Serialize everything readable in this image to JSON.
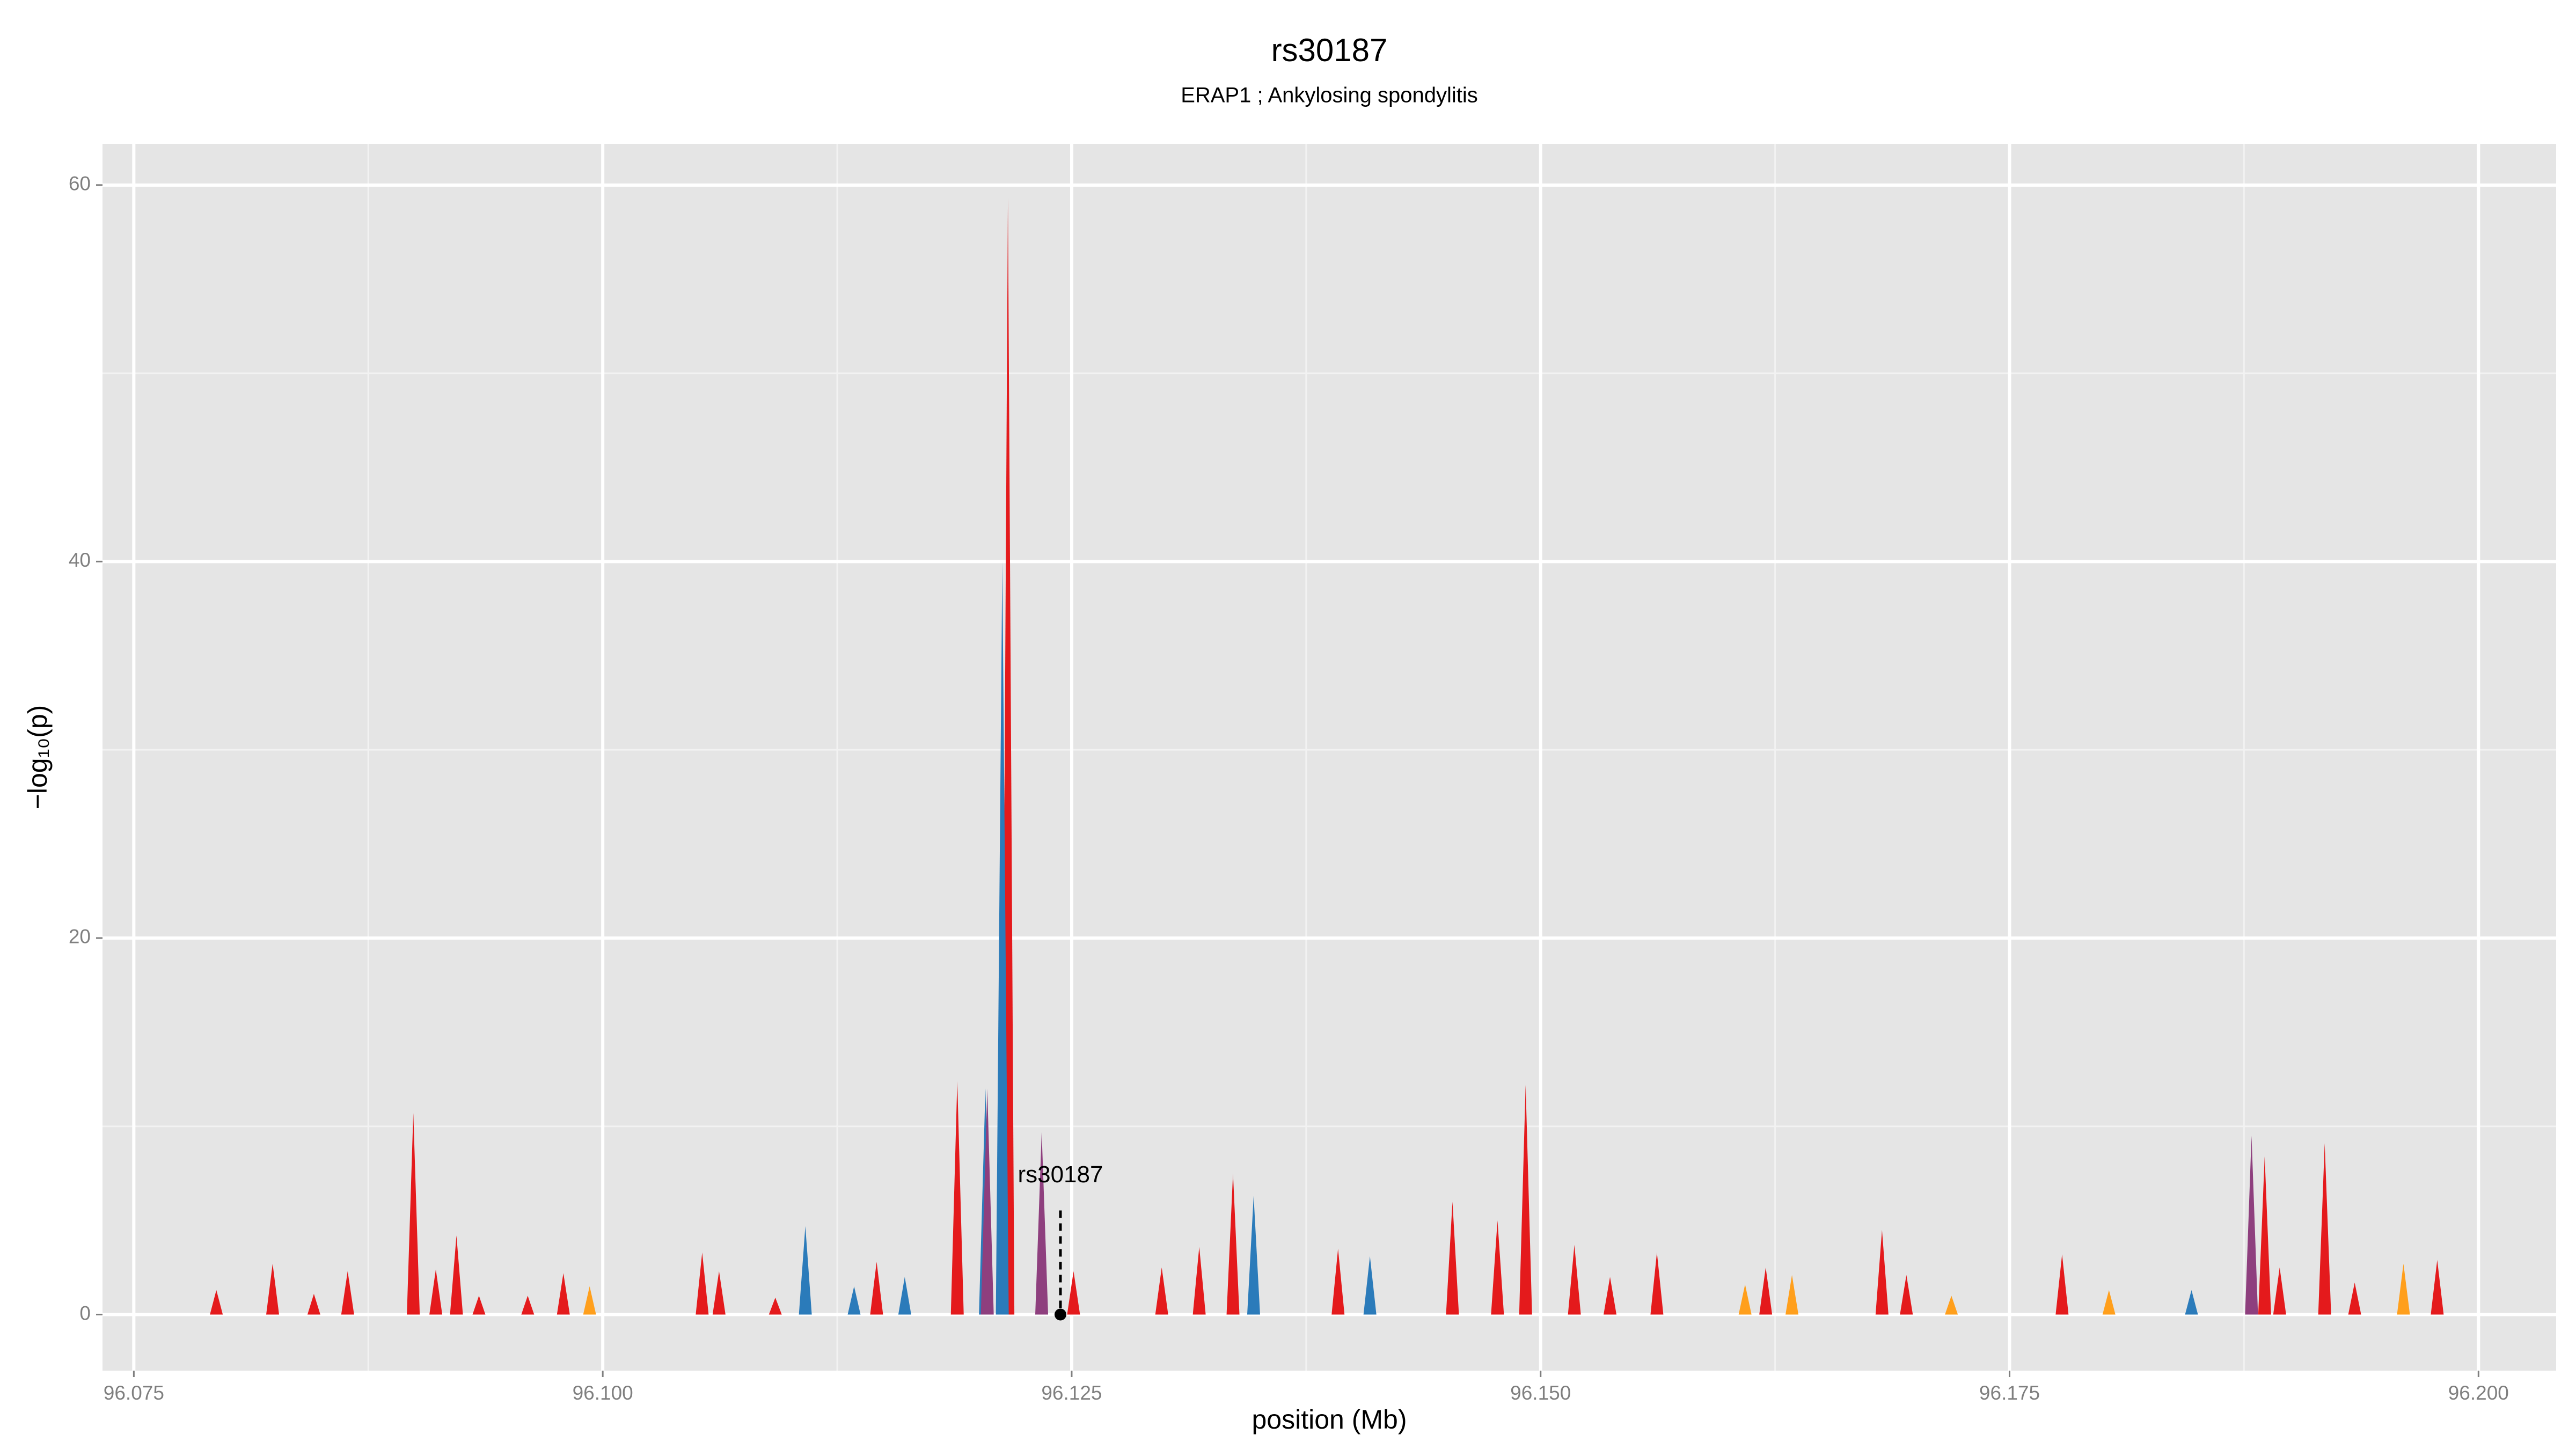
{
  "chart_data": {
    "type": "area",
    "title": "rs30187",
    "subtitle": "ERAP1 ; Ankylosing spondylitis",
    "x_label": "position (Mb)",
    "y_label": "−log₁₀(p)",
    "xlim": [
      96.07333,
      96.20414
    ],
    "ylim": [
      -2.98,
      62.19
    ],
    "xticks": [
      {
        "value": 96.075,
        "label": "96.075"
      },
      {
        "value": 96.1,
        "label": "96.100"
      },
      {
        "value": 96.125,
        "label": "96.125"
      },
      {
        "value": 96.15,
        "label": "96.150"
      },
      {
        "value": 96.175,
        "label": "96.175"
      },
      {
        "value": 96.2,
        "label": "96.200"
      }
    ],
    "yticks": [
      0,
      20,
      40,
      60
    ],
    "grid": true,
    "series": [
      {
        "color": "#e41a1c",
        "x": [
          96.0794,
          96.0824,
          96.0846,
          96.0864,
          96.0899,
          96.0911,
          96.0922,
          96.0934,
          96.096,
          96.0979,
          96.1053,
          96.1062,
          96.1092,
          96.1146,
          96.1189,
          96.1216,
          96.1251,
          96.1298,
          96.1318,
          96.1336,
          96.1392,
          96.1453,
          96.1477,
          96.1492,
          96.1518,
          96.1537,
          96.1562,
          96.162,
          96.1682,
          96.1695,
          96.1778,
          96.1886,
          96.1894,
          96.1918,
          96.1934,
          96.1978
        ],
        "values": [
          1.3,
          2.7,
          1.1,
          2.3,
          10.7,
          2.4,
          4.2,
          1,
          1,
          2.2,
          3.3,
          2.3,
          0.9,
          2.8,
          12.4,
          59.3,
          2.3,
          2.5,
          3.6,
          7.5,
          3.5,
          6,
          5,
          12.2,
          3.7,
          2,
          3.3,
          2.5,
          4.5,
          2.1,
          3.2,
          8.4,
          2.5,
          9.1,
          1.7,
          2.9
        ]
      },
      {
        "color": "#2b7bba",
        "x": [
          96.1108,
          96.1134,
          96.1161,
          96.1204,
          96.1213,
          96.1347,
          96.1409,
          96.1847
        ],
        "values": [
          4.7,
          1.5,
          2,
          12,
          40,
          6.3,
          3.1,
          1.3
        ]
      },
      {
        "color": "#ff9f1c",
        "x": [
          96.0993,
          96.1609,
          96.1634,
          96.1719,
          96.1803,
          96.196
        ],
        "values": [
          1.5,
          1.6,
          2.1,
          1,
          1.3,
          2.7
        ]
      },
      {
        "color": "#8e3f7e",
        "x": [
          96.1205,
          96.1234,
          96.1879
        ],
        "values": [
          12,
          9.7,
          9.5
        ]
      }
    ],
    "annotation": {
      "text": "rs30187",
      "x": 96.1244,
      "y": 0
    }
  }
}
